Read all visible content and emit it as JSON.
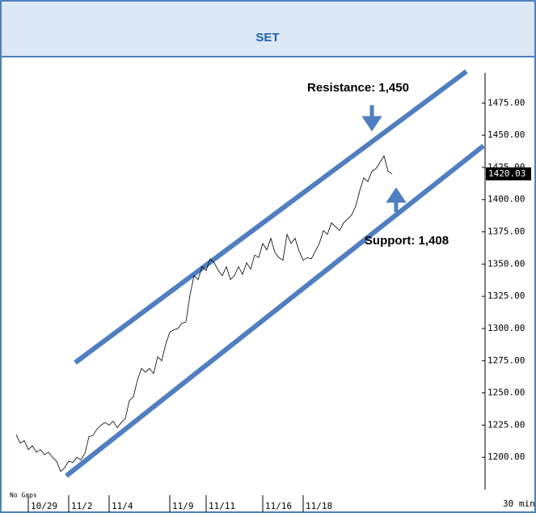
{
  "chart_data": {
    "type": "line",
    "title": "SET",
    "x": [
      0,
      1,
      2,
      3,
      4,
      5,
      6,
      7,
      8,
      9,
      10,
      11,
      12,
      13,
      14,
      15,
      16,
      17,
      18,
      19,
      20,
      21,
      22,
      23,
      24,
      25,
      26,
      27,
      28,
      29,
      30,
      31,
      32,
      33,
      34,
      35,
      36,
      37,
      38,
      39,
      40,
      41,
      42,
      43,
      44,
      45,
      46,
      47,
      48,
      49,
      50,
      51,
      52,
      53,
      54,
      55,
      56,
      57,
      58,
      59,
      60,
      61,
      62,
      63,
      64,
      65,
      66,
      67,
      68,
      69,
      70,
      71,
      72,
      73,
      74,
      75,
      76,
      77,
      78,
      79,
      80,
      81,
      82,
      83,
      84,
      85,
      86,
      87,
      88,
      89,
      90,
      91,
      92,
      93
    ],
    "series": [
      {
        "color": "#000000",
        "values": [
          1217.6,
          1211,
          1213,
          1206,
          1209,
          1204,
          1206,
          1202,
          1204,
          1200,
          1197,
          1189,
          1192,
          1197,
          1196,
          1200,
          1198,
          1203,
          1216,
          1217,
          1222,
          1225,
          1227,
          1225,
          1228,
          1223,
          1227,
          1230,
          1244,
          1247,
          1260,
          1269,
          1266,
          1269,
          1265,
          1278,
          1275,
          1288,
          1297,
          1299,
          1300,
          1304,
          1305,
          1326,
          1341,
          1338,
          1348,
          1345,
          1354,
          1351,
          1345,
          1341,
          1348,
          1338,
          1341,
          1348,
          1342,
          1351,
          1346,
          1357,
          1355,
          1366,
          1361,
          1370,
          1359,
          1355,
          1353,
          1373,
          1366,
          1370,
          1360,
          1353,
          1355,
          1354,
          1360,
          1366,
          1376,
          1373,
          1382,
          1379,
          1376,
          1382,
          1385,
          1388,
          1395,
          1407,
          1417,
          1414,
          1422,
          1424,
          1429,
          1434,
          1422,
          1420
        ]
      }
    ],
    "xlim": [
      0,
      116
    ],
    "xticks": [
      {
        "value": 3,
        "label": "10/29"
      },
      {
        "value": 13,
        "label": "11/2"
      },
      {
        "value": 23,
        "label": "11/4"
      },
      {
        "value": 38,
        "label": "11/9"
      },
      {
        "value": 47,
        "label": "11/11"
      },
      {
        "value": 61,
        "label": "11/16"
      },
      {
        "value": 71,
        "label": "11/18"
      }
    ],
    "ylim": [
      1175,
      1511
    ],
    "yticks": [
      {
        "value": 1200,
        "label": "1200.00"
      },
      {
        "value": 1225,
        "label": "1225.00"
      },
      {
        "value": 1250,
        "label": "1250.00"
      },
      {
        "value": 1275,
        "label": "1275.00"
      },
      {
        "value": 1300,
        "label": "1300.00"
      },
      {
        "value": 1325,
        "label": "1325.00"
      },
      {
        "value": 1350,
        "label": "1350.00"
      },
      {
        "value": 1375,
        "label": "1375.00"
      },
      {
        "value": 1400,
        "label": "1400.00"
      },
      {
        "value": 1425,
        "label": "1425.00"
      },
      {
        "value": 1450,
        "label": "1450.00"
      },
      {
        "value": 1475,
        "label": "1475.00"
      }
    ],
    "last_price": {
      "value": 1420.03,
      "label": "1420.03"
    },
    "trend_lines": [
      {
        "label": "Resistance: 1,450",
        "color": "#4f7fc0",
        "x": [
          14.6,
          111.4
        ],
        "y": [
          1273.5,
          1499.6
        ]
      },
      {
        "label": "Support: 1,408",
        "color": "#4f7fc0",
        "x": [
          12.4,
          115.6
        ],
        "y": [
          1185.6,
          1441.8
        ]
      }
    ],
    "gap_note": "No Gaps",
    "interval": "30 min"
  }
}
